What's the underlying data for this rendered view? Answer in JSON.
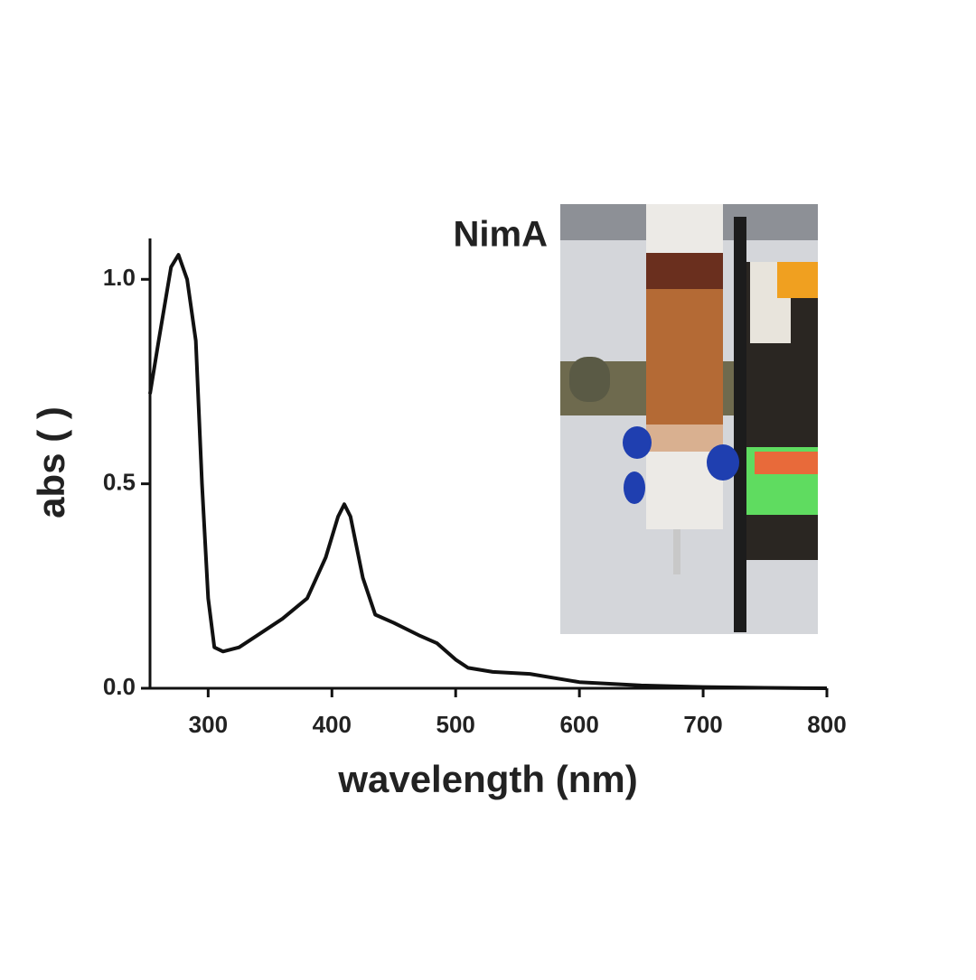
{
  "chart_data": {
    "type": "line",
    "annotation": "NimA",
    "x_label": "wavelength (nm)",
    "y_label": "abs ( )",
    "x": [
      253,
      260,
      270,
      276,
      283,
      290,
      295,
      300,
      305,
      312,
      325,
      340,
      360,
      380,
      395,
      405,
      410,
      415,
      425,
      435,
      450,
      470,
      485,
      500,
      510,
      530,
      560,
      580,
      600,
      650,
      700,
      750,
      800
    ],
    "series": [
      {
        "color": "#111111",
        "values": [
          0.72,
          0.85,
          1.03,
          1.06,
          1.0,
          0.85,
          0.5,
          0.22,
          0.1,
          0.09,
          0.1,
          0.13,
          0.17,
          0.22,
          0.32,
          0.42,
          0.45,
          0.42,
          0.27,
          0.18,
          0.16,
          0.13,
          0.11,
          0.07,
          0.05,
          0.04,
          0.035,
          0.025,
          0.015,
          0.007,
          0.003,
          0.001,
          0
        ]
      }
    ],
    "xlim": [
      253,
      800
    ],
    "ylim": [
      0,
      1.1
    ],
    "xticks": [
      300,
      400,
      500,
      600,
      700,
      800
    ],
    "yticks": [
      {
        "value": 0,
        "label": "0.0"
      },
      {
        "value": 0.5,
        "label": "0.5"
      },
      {
        "value": 1,
        "label": "1.0"
      }
    ]
  }
}
